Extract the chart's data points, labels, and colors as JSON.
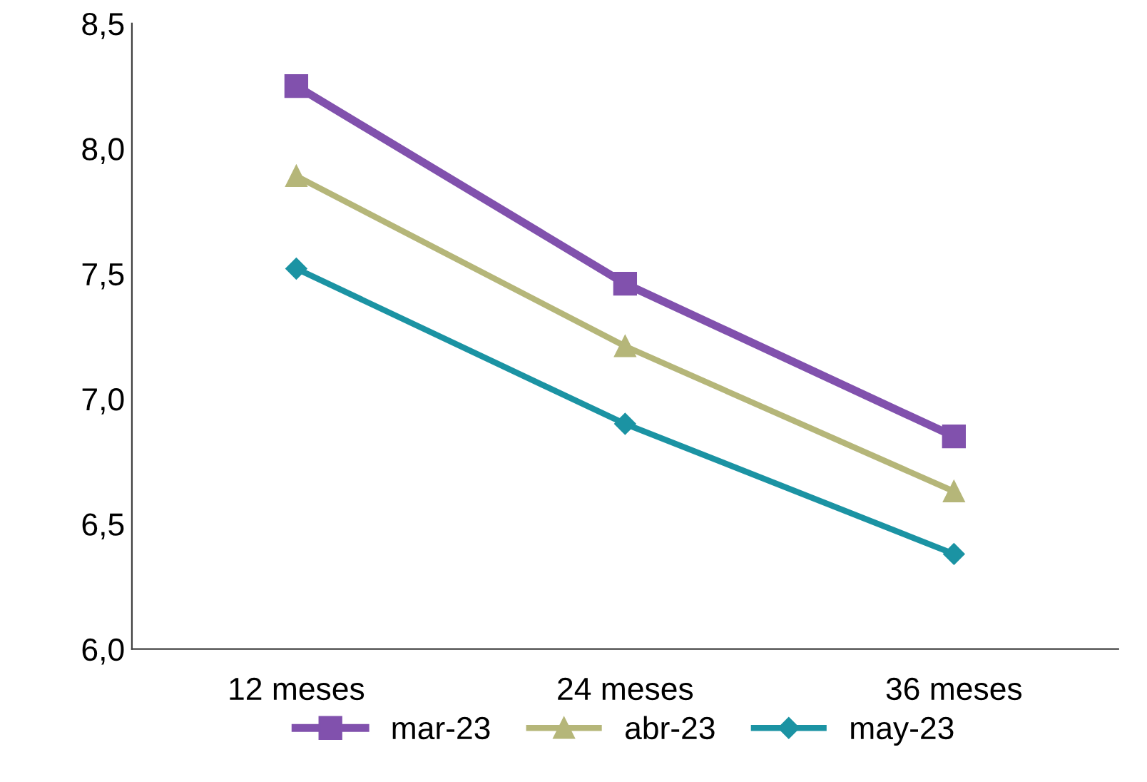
{
  "chart_data": {
    "type": "line",
    "categories": [
      "12 meses",
      "24 meses",
      "36 meses"
    ],
    "series": [
      {
        "name": "mar-23",
        "color": "#8151ad",
        "marker": "square",
        "values": [
          8.25,
          7.46,
          6.85
        ]
      },
      {
        "name": "abr-23",
        "color": "#b5b679",
        "marker": "triangle",
        "values": [
          7.89,
          7.21,
          6.63
        ]
      },
      {
        "name": "may-23",
        "color": "#1b93a3",
        "marker": "diamond",
        "values": [
          7.52,
          6.9,
          6.38
        ]
      }
    ],
    "ylim": [
      6.0,
      8.5
    ],
    "yticks": [
      {
        "value": 6.0,
        "label": "6,0"
      },
      {
        "value": 6.5,
        "label": "6,5"
      },
      {
        "value": 7.0,
        "label": "7,0"
      },
      {
        "value": 7.5,
        "label": "7,5"
      },
      {
        "value": 8.0,
        "label": "8,0"
      },
      {
        "value": 8.5,
        "label": "8,5"
      }
    ],
    "grid": false,
    "legend": "bottom",
    "line_style": "solid"
  }
}
